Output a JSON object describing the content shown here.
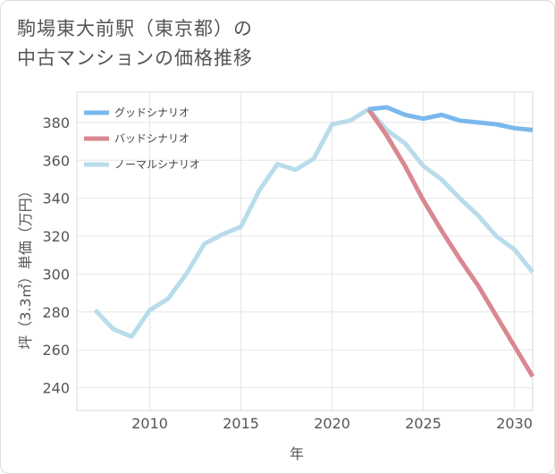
{
  "title": {
    "line1": "駒場東大前駅（東京都）の",
    "line2": "中古マンションの価格推移"
  },
  "chart_data": {
    "type": "line",
    "xlabel": "年",
    "ylabel": "坪（3.3㎡）単価（万円）",
    "xlim": [
      2006,
      2031
    ],
    "ylim": [
      228,
      396
    ],
    "x_ticks": [
      "2010",
      "2015",
      "2020",
      "2025",
      "2030"
    ],
    "y_ticks": [
      "240",
      "260",
      "280",
      "300",
      "320",
      "340",
      "360",
      "380"
    ],
    "legend_position": "top-left",
    "series": [
      {
        "name": "グッドシナリオ",
        "color": "#7ab8ec",
        "x": [
          2022,
          2023,
          2024,
          2025,
          2026,
          2027,
          2028,
          2029,
          2030,
          2031
        ],
        "y": [
          387,
          388,
          384,
          382,
          384,
          381,
          380,
          379,
          377,
          376
        ]
      },
      {
        "name": "バッドシナリオ",
        "color": "#d98890",
        "x": [
          2022,
          2023,
          2024,
          2025,
          2026,
          2027,
          2028,
          2029,
          2030,
          2031
        ],
        "y": [
          387,
          373,
          357,
          339,
          323,
          308,
          294,
          278,
          262,
          246
        ]
      },
      {
        "name": "ノーマルシナリオ",
        "color": "#b9dcea",
        "x": [
          2007,
          2008,
          2009,
          2010,
          2011,
          2012,
          2013,
          2014,
          2015,
          2016,
          2017,
          2018,
          2019,
          2020,
          2021,
          2022,
          2023,
          2024,
          2025,
          2026,
          2027,
          2028,
          2029,
          2030,
          2031
        ],
        "y": [
          281,
          271,
          267,
          281,
          287,
          300,
          316,
          321,
          325,
          344,
          358,
          355,
          361,
          379,
          381,
          387,
          376,
          369,
          357,
          350,
          340,
          331,
          320,
          313,
          301
        ]
      }
    ]
  }
}
